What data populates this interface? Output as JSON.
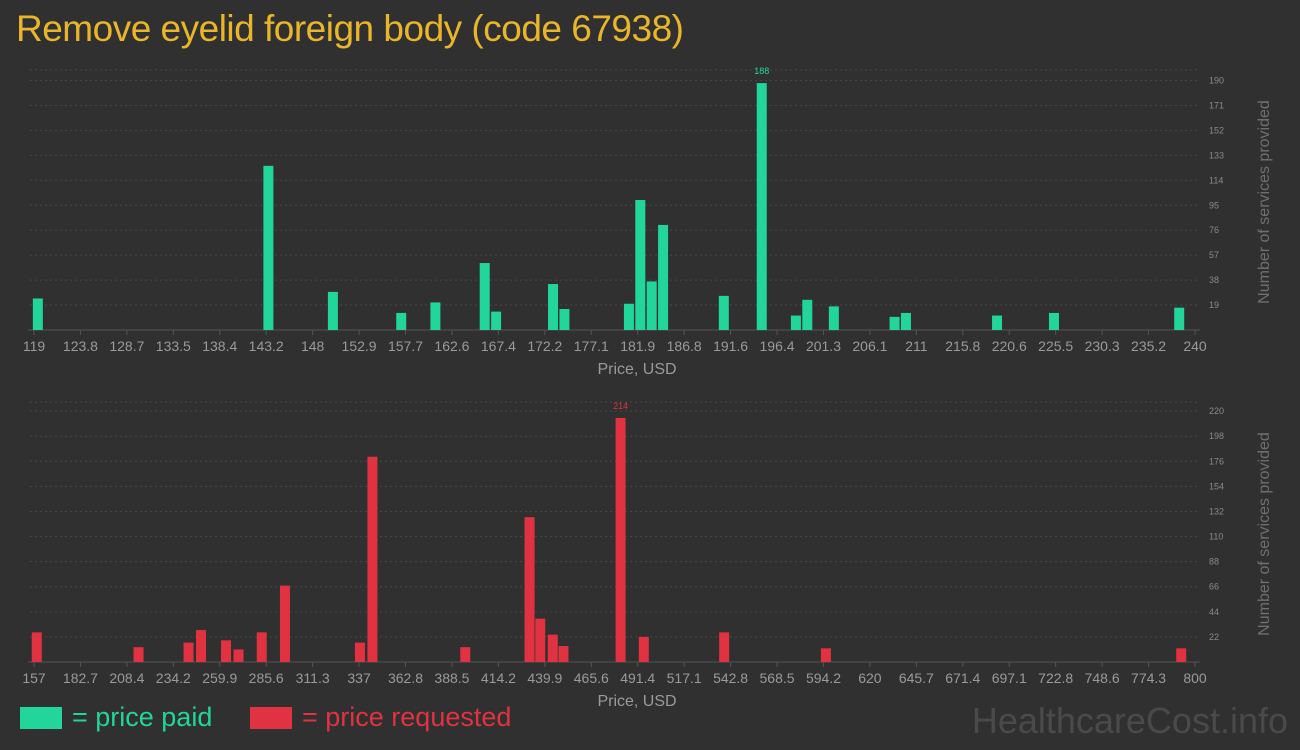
{
  "title": "Remove eyelid foreign body (code 67938)",
  "colors": {
    "paid": "#21d59b",
    "requested": "#e03241",
    "title": "#e9b52a"
  },
  "legend": {
    "paid": "= price paid",
    "requested": "= price requested"
  },
  "brand": "HealthcareCost.info",
  "chart_data": [
    {
      "type": "bar",
      "color": "#21d59b",
      "xlabel": "Price, USD",
      "ylabel": "Number of services provided",
      "x_ticks": [
        "119",
        "123.8",
        "128.7",
        "133.5",
        "138.4",
        "143.2",
        "148",
        "152.9",
        "157.7",
        "162.6",
        "167.4",
        "172.2",
        "177.1",
        "181.9",
        "186.8",
        "191.6",
        "196.4",
        "201.3",
        "206.1",
        "211",
        "215.8",
        "220.6",
        "225.5",
        "230.3",
        "235.2",
        "240"
      ],
      "y_ticks": [
        19,
        38,
        57,
        76,
        95,
        114,
        133,
        152,
        171,
        190
      ],
      "ylim": [
        0,
        198
      ],
      "xlim": [
        119,
        240
      ],
      "grid": true,
      "peak_label": "188",
      "bars": [
        {
          "x": 119.3,
          "y": 24
        },
        {
          "x": 143.6,
          "y": 125
        },
        {
          "x": 150.4,
          "y": 29
        },
        {
          "x": 157.6,
          "y": 13
        },
        {
          "x": 161.2,
          "y": 21
        },
        {
          "x": 166.4,
          "y": 51
        },
        {
          "x": 167.6,
          "y": 14
        },
        {
          "x": 173.6,
          "y": 35
        },
        {
          "x": 174.8,
          "y": 16
        },
        {
          "x": 181.6,
          "y": 20
        },
        {
          "x": 182.8,
          "y": 99
        },
        {
          "x": 184.0,
          "y": 37
        },
        {
          "x": 185.2,
          "y": 80
        },
        {
          "x": 191.6,
          "y": 26
        },
        {
          "x": 195.6,
          "y": 188
        },
        {
          "x": 199.2,
          "y": 11
        },
        {
          "x": 200.4,
          "y": 23
        },
        {
          "x": 203.2,
          "y": 18
        },
        {
          "x": 209.6,
          "y": 10
        },
        {
          "x": 210.8,
          "y": 13
        },
        {
          "x": 220.4,
          "y": 11
        },
        {
          "x": 226.4,
          "y": 13
        },
        {
          "x": 239.6,
          "y": 17
        }
      ]
    },
    {
      "type": "bar",
      "color": "#e03241",
      "xlabel": "Price, USD",
      "ylabel": "Number of services provided",
      "x_ticks": [
        "157",
        "182.7",
        "208.4",
        "234.2",
        "259.9",
        "285.6",
        "311.3",
        "337",
        "362.8",
        "388.5",
        "414.2",
        "439.9",
        "465.6",
        "491.4",
        "517.1",
        "542.8",
        "568.5",
        "594.2",
        "620",
        "645.7",
        "671.4",
        "697.1",
        "722.8",
        "748.6",
        "774.3",
        "800"
      ],
      "y_ticks": [
        22,
        44,
        66,
        88,
        110,
        132,
        154,
        176,
        198,
        220
      ],
      "ylim": [
        0,
        228
      ],
      "xlim": [
        157,
        800
      ],
      "grid": true,
      "peak_label": "214",
      "bars": [
        {
          "x": 158,
          "y": 26
        },
        {
          "x": 215,
          "y": 13
        },
        {
          "x": 243,
          "y": 17
        },
        {
          "x": 250,
          "y": 28
        },
        {
          "x": 264,
          "y": 19
        },
        {
          "x": 271,
          "y": 11
        },
        {
          "x": 284,
          "y": 26
        },
        {
          "x": 297,
          "y": 67
        },
        {
          "x": 339,
          "y": 17
        },
        {
          "x": 346,
          "y": 180
        },
        {
          "x": 398,
          "y": 13
        },
        {
          "x": 434,
          "y": 127
        },
        {
          "x": 440,
          "y": 38
        },
        {
          "x": 447,
          "y": 24
        },
        {
          "x": 453,
          "y": 14
        },
        {
          "x": 485,
          "y": 214
        },
        {
          "x": 498,
          "y": 22
        },
        {
          "x": 543,
          "y": 26
        },
        {
          "x": 600,
          "y": 12
        },
        {
          "x": 799,
          "y": 12
        }
      ]
    }
  ]
}
